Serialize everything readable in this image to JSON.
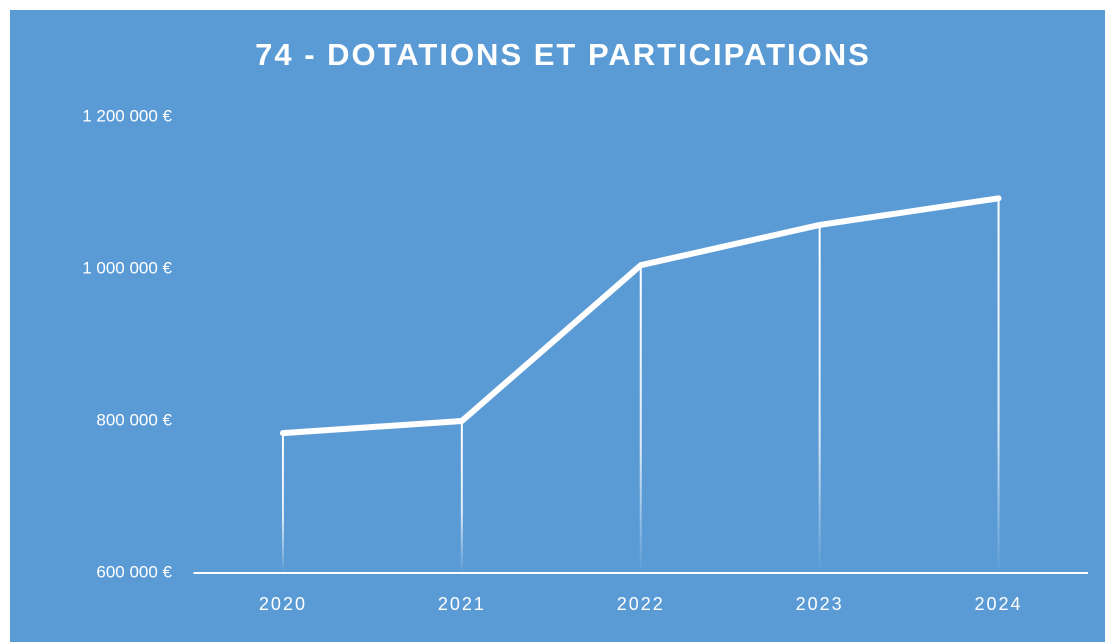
{
  "chart_data": {
    "type": "line",
    "title": "74 - DOTATIONS ET PARTICIPATIONS",
    "categories": [
      "2020",
      "2021",
      "2022",
      "2023",
      "2024"
    ],
    "values": [
      784000,
      800000,
      1005000,
      1058000,
      1093000
    ],
    "color": "#ffffff",
    "background": "#5b9bd5",
    "drop_lines": true,
    "ylim": [
      600000,
      1200000
    ],
    "yticks": [
      {
        "value": 600000,
        "label": "600 000 €"
      },
      {
        "value": 800000,
        "label": "800 000 €"
      },
      {
        "value": 1000000,
        "label": "1 000 000 €"
      },
      {
        "value": 1200000,
        "label": "1 200 000 €"
      }
    ]
  }
}
